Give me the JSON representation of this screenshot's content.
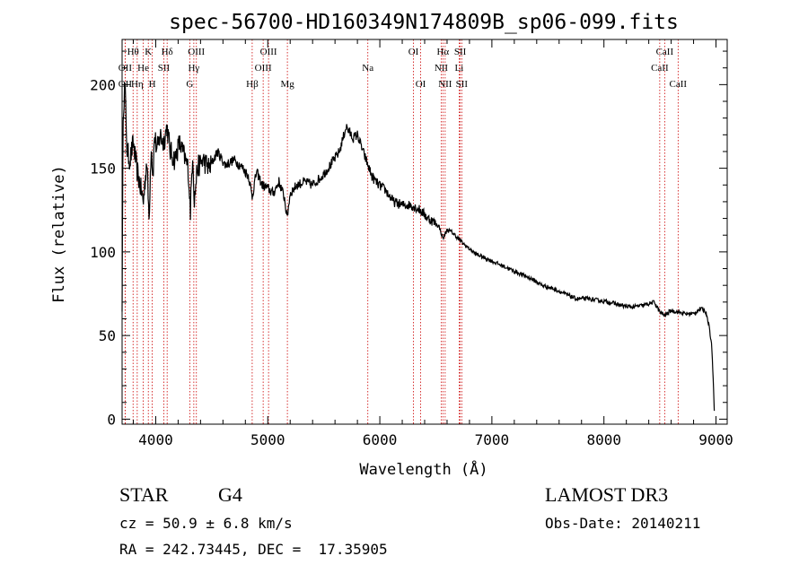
{
  "chart_data": {
    "type": "line",
    "title": "spec-56700-HD160349N174809B_sp06-099.fits",
    "xlabel": "Wavelength (Å)",
    "ylabel": "Flux (relative)",
    "xlim": [
      3700,
      9100
    ],
    "ylim": [
      -3,
      227
    ],
    "xticks": [
      4000,
      5000,
      6000,
      7000,
      8000,
      9000
    ],
    "xtick_labels": [
      "4000",
      "5000",
      "6000",
      "7000",
      "8000",
      "9000"
    ],
    "yticks": [
      0,
      50,
      100,
      150,
      200
    ],
    "ytick_labels": [
      "0",
      "50",
      "100",
      "150",
      "200"
    ],
    "grid": false,
    "series": [
      {
        "name": "spectrum",
        "x": [
          3700,
          3710,
          3725,
          3745,
          3770,
          3800,
          3830,
          3860,
          3890,
          3920,
          3940,
          3960,
          3975,
          3990,
          4010,
          4040,
          4070,
          4100,
          4130,
          4170,
          4210,
          4250,
          4290,
          4310,
          4330,
          4345,
          4370,
          4420,
          4480,
          4550,
          4620,
          4700,
          4780,
          4830,
          4861,
          4900,
          4950,
          5000,
          5050,
          5100,
          5150,
          5172,
          5200,
          5260,
          5330,
          5400,
          5480,
          5560,
          5640,
          5700,
          5760,
          5800,
          5850,
          5893,
          5930,
          5990,
          6050,
          6120,
          6200,
          6280,
          6360,
          6430,
          6480,
          6530,
          6563,
          6600,
          6640,
          6700,
          6760,
          6850,
          6950,
          7050,
          7150,
          7250,
          7350,
          7450,
          7550,
          7650,
          7750,
          7850,
          7950,
          8050,
          8150,
          8250,
          8350,
          8450,
          8498,
          8542,
          8600,
          8662,
          8720,
          8800,
          8860,
          8900,
          8920,
          8940,
          8960,
          8975,
          8985
        ],
        "values": [
          70,
          185,
          200,
          160,
          155,
          165,
          150,
          140,
          130,
          155,
          120,
          165,
          145,
          170,
          160,
          170,
          165,
          175,
          160,
          155,
          165,
          158,
          150,
          125,
          160,
          130,
          150,
          155,
          150,
          160,
          152,
          155,
          150,
          145,
          133,
          148,
          140,
          138,
          135,
          142,
          132,
          120,
          135,
          140,
          142,
          140,
          145,
          152,
          160,
          175,
          168,
          170,
          160,
          152,
          145,
          140,
          137,
          130,
          128,
          128,
          125,
          120,
          118,
          115,
          108,
          113,
          112,
          108,
          104,
          99,
          96,
          93,
          90,
          87,
          84,
          80,
          78,
          75,
          72,
          72,
          71,
          70,
          68,
          67,
          68,
          70,
          64,
          62,
          65,
          64,
          63,
          63,
          66,
          65,
          62,
          55,
          45,
          25,
          5
        ]
      }
    ],
    "lines": [
      {
        "label": "Hθ",
        "x": 3798,
        "row": 1
      },
      {
        "label": "OII",
        "x": 3727,
        "row": 2
      },
      {
        "label": "OII",
        "x": 3727,
        "row": 3
      },
      {
        "label": "Hη",
        "x": 3835,
        "row": 3
      },
      {
        "label": "He",
        "x": 3889,
        "row": 2
      },
      {
        "label": "K",
        "x": 3934,
        "row": 1
      },
      {
        "label": "H",
        "x": 3969,
        "row": 3
      },
      {
        "label": "SII",
        "x": 4072,
        "row": 2
      },
      {
        "label": "Hδ",
        "x": 4102,
        "row": 1
      },
      {
        "label": "OIII",
        "x": 4363,
        "row": 1
      },
      {
        "label": "Hγ",
        "x": 4340,
        "row": 2
      },
      {
        "label": "G",
        "x": 4304,
        "row": 3
      },
      {
        "label": "Hβ",
        "x": 4861,
        "row": 3
      },
      {
        "label": "OIII",
        "x": 4959,
        "row": 2
      },
      {
        "label": "OIII",
        "x": 5007,
        "row": 1
      },
      {
        "label": "Mg",
        "x": 5175,
        "row": 3
      },
      {
        "label": "Na",
        "x": 5893,
        "row": 2
      },
      {
        "label": "OI",
        "x": 6300,
        "row": 1
      },
      {
        "label": "OI",
        "x": 6364,
        "row": 3
      },
      {
        "label": "NII",
        "x": 6548,
        "row": 2
      },
      {
        "label": "Hα",
        "x": 6563,
        "row": 1
      },
      {
        "label": "NII",
        "x": 6583,
        "row": 3
      },
      {
        "label": "Li",
        "x": 6708,
        "row": 2
      },
      {
        "label": "SII",
        "x": 6717,
        "row": 1
      },
      {
        "label": "SII",
        "x": 6731,
        "row": 3
      },
      {
        "label": "CaII",
        "x": 8498,
        "row": 2
      },
      {
        "label": "CaII",
        "x": 8542,
        "row": 1
      },
      {
        "label": "CaII",
        "x": 8662,
        "row": 3
      }
    ]
  },
  "info": {
    "class_label": "STAR",
    "subclass": "G4",
    "survey": "LAMOST DR3",
    "cz": "cz = 50.9 ± 6.8 km/s",
    "obs_date": "Obs-Date: 20140211",
    "coords": "RA = 242.73445, DEC =  17.35905"
  }
}
